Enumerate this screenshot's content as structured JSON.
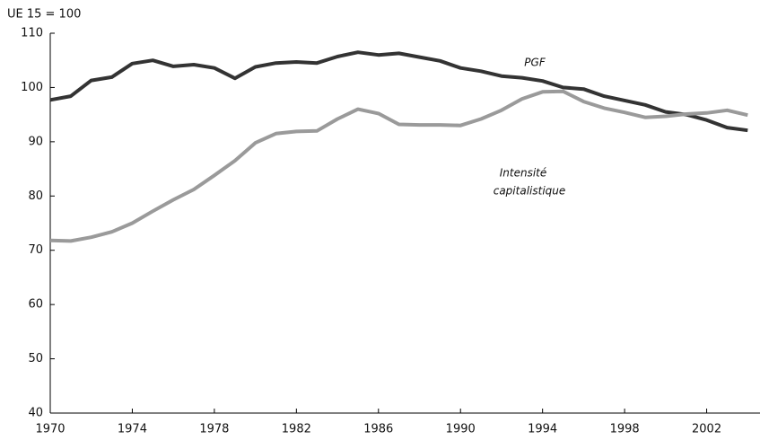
{
  "chart_data": {
    "type": "line",
    "y_label": "UE 15 = 100",
    "x": [
      1970,
      1971,
      1972,
      1973,
      1974,
      1975,
      1976,
      1977,
      1978,
      1979,
      1980,
      1981,
      1982,
      1983,
      1984,
      1985,
      1986,
      1987,
      1988,
      1989,
      1990,
      1991,
      1992,
      1993,
      1994,
      1995,
      1996,
      1997,
      1998,
      1999,
      2000,
      2001,
      2002,
      2003,
      2004
    ],
    "series": [
      {
        "name": "PGF",
        "color": "#333333",
        "values": [
          97.7,
          98.4,
          101.3,
          101.9,
          104.4,
          105,
          103.9,
          104.2,
          103.6,
          101.7,
          103.8,
          104.5,
          104.7,
          104.5,
          105.7,
          106.5,
          106,
          106.3,
          105.6,
          104.9,
          103.6,
          103,
          102.1,
          101.8,
          101.2,
          100,
          99.7,
          98.4,
          97.6,
          96.8,
          95.5,
          95,
          94,
          92.6,
          92.1
        ]
      },
      {
        "name": "Intensité capitalistique",
        "color": "#9a9a9a",
        "values": [
          71.8,
          71.7,
          72.4,
          73.4,
          75,
          77.2,
          79.3,
          81.2,
          83.8,
          86.5,
          89.8,
          91.5,
          91.9,
          92,
          94.2,
          96,
          95.2,
          93.2,
          93.1,
          93.1,
          93,
          94.2,
          95.8,
          97.9,
          99.2,
          99.3,
          97.4,
          96.2,
          95.4,
          94.5,
          94.7,
          95.1,
          95.3,
          95.8,
          94.9
        ]
      }
    ],
    "annotations": [
      "PGF",
      "Intensité",
      "capitalistique"
    ],
    "xlim": [
      1970,
      2004.6
    ],
    "xticks": [
      1970,
      1974,
      1978,
      1982,
      1986,
      1990,
      1994,
      1998,
      2002
    ],
    "ylim": [
      40,
      110
    ],
    "yticks": [
      40,
      50,
      60,
      70,
      80,
      90,
      100,
      110
    ],
    "grid": false
  }
}
